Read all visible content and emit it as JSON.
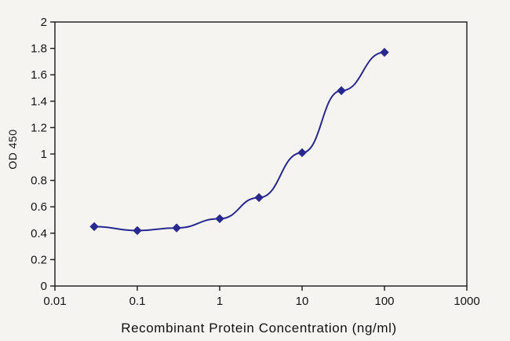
{
  "chart_data": {
    "type": "line",
    "title": "",
    "xlabel": "Recombinant Protein Concentration (ng/ml)",
    "ylabel": "OD 450",
    "x_scale": "log",
    "xlim": [
      0.01,
      1000
    ],
    "ylim": [
      0,
      2
    ],
    "x": [
      0.03,
      0.1,
      0.3,
      1,
      3,
      10,
      30,
      100
    ],
    "y": [
      0.45,
      0.42,
      0.44,
      0.51,
      0.67,
      1.01,
      1.48,
      1.77
    ],
    "x_ticks": [
      0.01,
      0.1,
      1,
      10,
      100,
      1000
    ],
    "x_tick_labels": [
      "0.01",
      "0.1",
      "1",
      "10",
      "100",
      "1000"
    ],
    "y_ticks": [
      0,
      0.2,
      0.4,
      0.6,
      0.8,
      1,
      1.2,
      1.4,
      1.6,
      1.8,
      2
    ],
    "y_tick_labels": [
      "0",
      "0.2",
      "0.4",
      "0.6",
      "0.8",
      "1",
      "1.2",
      "1.4",
      "1.6",
      "1.8",
      "2"
    ],
    "grid": false,
    "legend": null,
    "marker": "diamond",
    "line_color": "#282890",
    "marker_color": "#282890"
  },
  "colors": {
    "background": "#f5f4f1",
    "axis": "#1a1a1a",
    "tick_text": "#141414"
  }
}
